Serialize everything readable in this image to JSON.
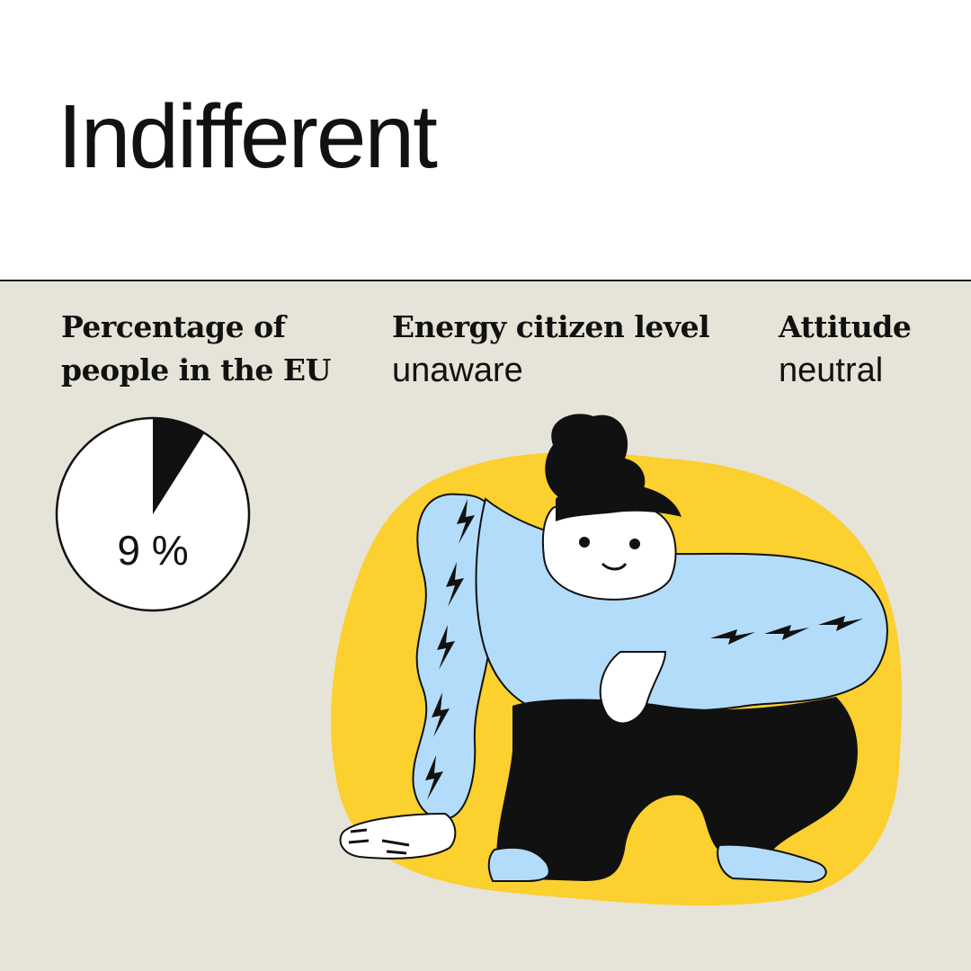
{
  "title": "Indifferent",
  "stats": {
    "percentage_label": "Percentage of people in the EU",
    "percentage_value": "9 %",
    "percentage_fraction": 0.09,
    "level_label": "Energy citizen level",
    "level_value": "unaware",
    "attitude_label": "Attitude",
    "attitude_value": "neutral"
  },
  "colors": {
    "header_bg": "#ffffff",
    "panel_bg": "#e6e3d8",
    "accent_yellow": "#fbd02f",
    "accent_blue": "#b3dcfb",
    "ink": "#111111"
  },
  "illustration": {
    "icon": "crouching-person-illustration"
  }
}
